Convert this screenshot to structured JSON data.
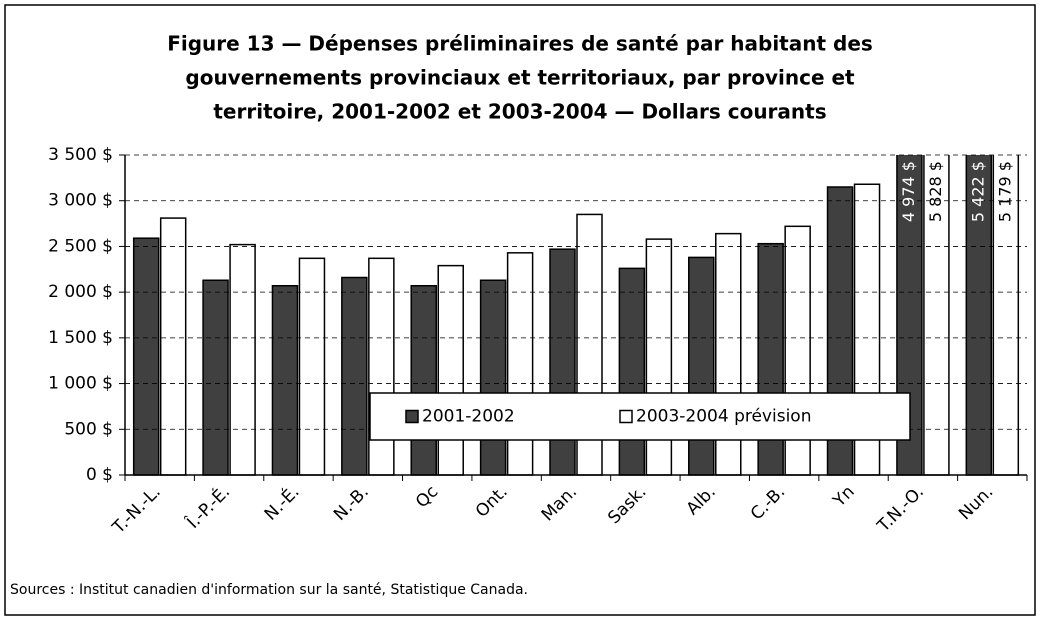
{
  "chart_data": {
    "type": "bar",
    "title": [
      "Figure 13 — Dépenses préliminaires de santé par habitant des",
      "gouvernements provinciaux et territoriaux, par province et",
      "territoire, 2001-2002 et 2003-2004 — Dollars courants"
    ],
    "categories": [
      "T.-N.-L.",
      "Î.-P.-É.",
      "N.-É.",
      "N.-B.",
      "Qc",
      "Ont.",
      "Man.",
      "Sask.",
      "Alb.",
      "C.-B.",
      "Yn",
      "T.N.-O.",
      "Nun."
    ],
    "series": [
      {
        "name": "2001-2002",
        "color": "#404040",
        "values": [
          2590,
          2130,
          2070,
          2160,
          2070,
          2130,
          2470,
          2260,
          2380,
          2530,
          3150,
          4974,
          5422
        ],
        "value_labels": [
          null,
          null,
          null,
          null,
          null,
          null,
          null,
          null,
          null,
          null,
          null,
          "4 974 $",
          "5 422 $"
        ]
      },
      {
        "name": "2003-2004 prévision",
        "color": "#ffffff",
        "values": [
          2810,
          2520,
          2370,
          2370,
          2290,
          2430,
          2850,
          2580,
          2640,
          2720,
          3180,
          5828,
          5179
        ],
        "value_labels": [
          null,
          null,
          null,
          null,
          null,
          null,
          null,
          null,
          null,
          null,
          null,
          "5 828 $",
          "5 179 $"
        ]
      }
    ],
    "ylim": [
      0,
      3500
    ],
    "yticks": [
      {
        "value": 0,
        "label": "0 $"
      },
      {
        "value": 500,
        "label": "500 $"
      },
      {
        "value": 1000,
        "label": "1 000 $"
      },
      {
        "value": 1500,
        "label": "1 500 $"
      },
      {
        "value": 2000,
        "label": "2 000 $"
      },
      {
        "value": 2500,
        "label": "2 500 $"
      },
      {
        "value": 3000,
        "label": "3 000 $"
      },
      {
        "value": 3500,
        "label": "3 500 $"
      }
    ],
    "grid": true,
    "legend": "bottom",
    "source": "Sources : Institut canadien d'information sur la santé, Statistique Canada."
  }
}
